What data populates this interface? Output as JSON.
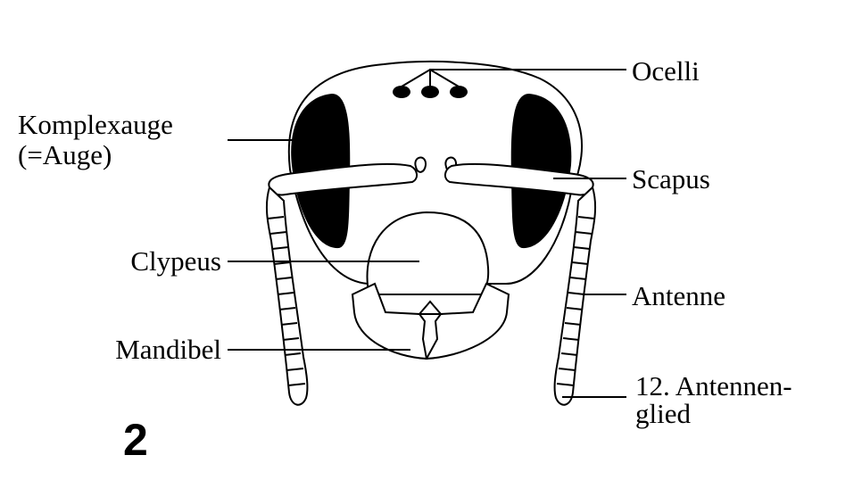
{
  "figure_number": "2",
  "labels": {
    "ocelli": "Ocelli",
    "komplexauge_line1": "Komplexauge",
    "komplexauge_line2": "(=Auge)",
    "scapus": "Scapus",
    "clypeus": "Clypeus",
    "antenne": "Antenne",
    "mandibel": "Mandibel",
    "antennenglied_line1": "12. Antennen-",
    "antennenglied_line2": "glied"
  },
  "colors": {
    "ink": "#000000",
    "background": "#ffffff"
  }
}
